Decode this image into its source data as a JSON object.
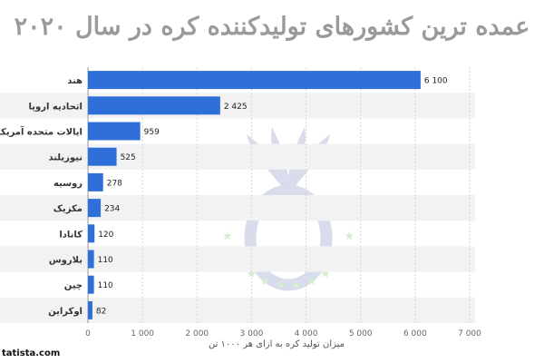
{
  "chart_data": {
    "type": "bar",
    "orientation": "horizontal",
    "title": "عمده ترین کشورهای تولیدکننده کره در سال ۲۰۲۰",
    "xlabel": "میزان تولید کره به ازای هر ۱۰۰۰ تن",
    "ylabel": "",
    "categories": [
      "هند",
      "اتحادیه اروپا",
      "ایالات متحده آمریکا",
      "نیوزیلند",
      "روسیه",
      "مکزیک",
      "کانادا",
      "بلاروس",
      "چین",
      "اوکراین"
    ],
    "values": [
      6100,
      2425,
      959,
      525,
      278,
      234,
      120,
      110,
      110,
      82
    ],
    "value_labels": [
      "6 100",
      "2 425",
      "959",
      "525",
      "278",
      "234",
      "120",
      "110",
      "110",
      "82"
    ],
    "xlim": [
      0,
      7000
    ],
    "xticks": [
      0,
      1000,
      2000,
      3000,
      4000,
      5000,
      6000,
      7000
    ],
    "xtick_labels": [
      "0",
      "1 000",
      "2 000",
      "3 000",
      "4 000",
      "5 000",
      "6 000",
      "7 000"
    ],
    "grid": true,
    "bar_color": "#2f6fd9",
    "row_shading_color": "#f2f2f2"
  },
  "source": "tatista.com"
}
